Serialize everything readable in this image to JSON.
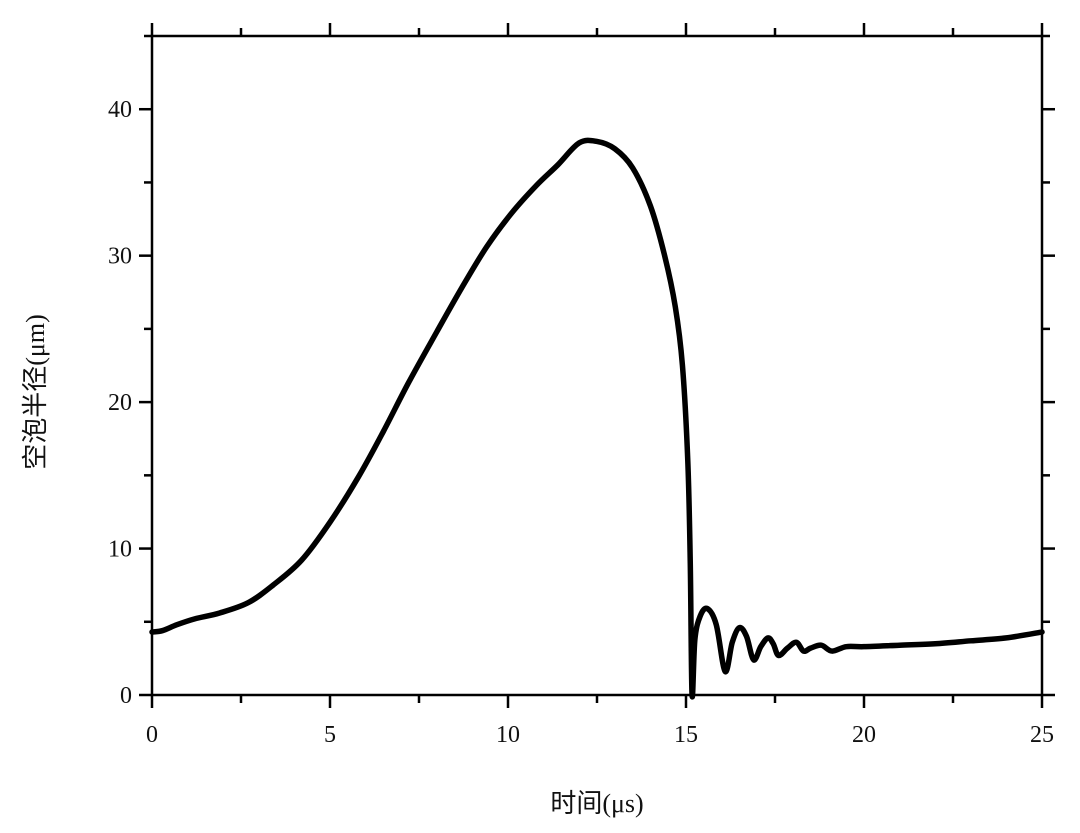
{
  "chart_data": {
    "type": "line",
    "title": "",
    "xlabel": "时间(μs)",
    "ylabel": "空泡半径(μm)",
    "xlim": [
      0,
      25
    ],
    "ylim": [
      0,
      45
    ],
    "xticks": [
      0,
      5,
      10,
      15,
      20,
      25
    ],
    "yticks": [
      0,
      10,
      20,
      30,
      40
    ],
    "xtick_labels": [
      "0",
      "5",
      "10",
      "15",
      "20",
      "25"
    ],
    "ytick_labels": [
      "0",
      "10",
      "20",
      "30",
      "40"
    ],
    "grid": false,
    "legend": "none",
    "line_color": "#000000",
    "series": [
      {
        "x": [
          0,
          0.3,
          0.7,
          1.2,
          1.9,
          2.7,
          3.4,
          4.2,
          5.0,
          5.8,
          6.5,
          7.2,
          8.0,
          8.7,
          9.4,
          10.1,
          10.8,
          11.4,
          12.0,
          12.5,
          13.0,
          13.5,
          14.0,
          14.4,
          14.7,
          14.9,
          15.05,
          15.12,
          15.17,
          15.25,
          15.4,
          15.6,
          15.85,
          16.1,
          16.3,
          16.5,
          16.7,
          16.9,
          17.1,
          17.3,
          17.45,
          17.6,
          17.85,
          18.1,
          18.3,
          18.5,
          18.8,
          19.1,
          19.5,
          20.0,
          21.0,
          22.0,
          23.0,
          24.0,
          25.0
        ],
        "values": [
          4.3,
          4.4,
          4.8,
          5.2,
          5.6,
          6.3,
          7.5,
          9.2,
          11.8,
          14.9,
          18.0,
          21.3,
          24.8,
          27.8,
          30.6,
          32.9,
          34.8,
          36.2,
          37.7,
          37.8,
          37.3,
          36.0,
          33.4,
          30.0,
          26.5,
          22.5,
          16.0,
          9.0,
          0.0,
          3.8,
          5.4,
          5.9,
          4.8,
          1.6,
          3.6,
          4.6,
          4.0,
          2.4,
          3.3,
          3.9,
          3.5,
          2.7,
          3.2,
          3.6,
          3.0,
          3.2,
          3.4,
          3.0,
          3.3,
          3.3,
          3.4,
          3.5,
          3.7,
          3.9,
          4.3
        ]
      }
    ]
  }
}
